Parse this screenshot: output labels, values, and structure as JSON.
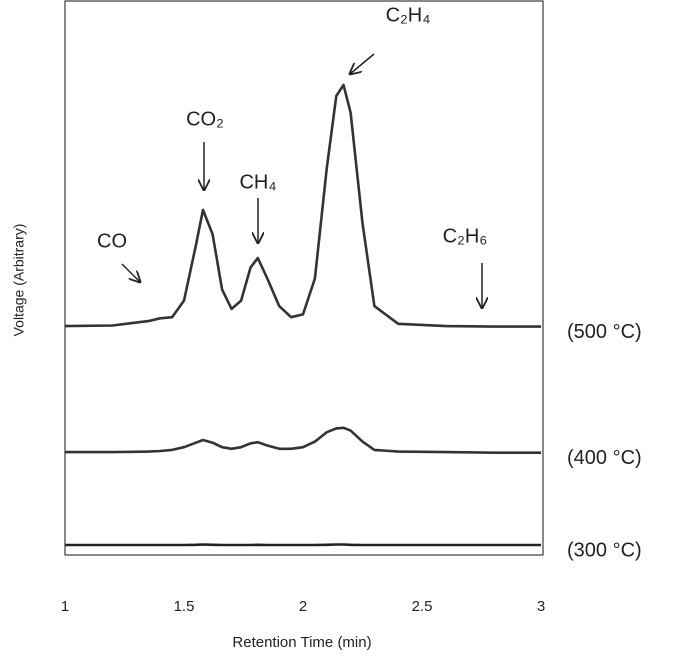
{
  "chart_data": {
    "type": "line",
    "x_label": "Retention Time (min)",
    "y_label": "Voltage (Arbitrary)",
    "x": [
      1,
      1.2,
      1.35,
      1.4,
      1.45,
      1.5,
      1.55,
      1.58,
      1.62,
      1.66,
      1.7,
      1.74,
      1.78,
      1.81,
      1.85,
      1.9,
      1.95,
      2.0,
      2.05,
      2.1,
      2.14,
      2.17,
      2.2,
      2.25,
      2.3,
      2.4,
      2.6,
      2.8,
      3
    ],
    "series": [
      {
        "name": "(500 °C)",
        "color": "#333333",
        "values": [
          41.4,
          41.5,
          42.3,
          42.8,
          43.0,
          46,
          56,
          62.4,
          58,
          48,
          44.5,
          46,
          52,
          53.7,
          50,
          45,
          43,
          43.5,
          50,
          70,
          83,
          85,
          80,
          60,
          45,
          41.8,
          41.4,
          41.3,
          41.3
        ]
      },
      {
        "name": "(400 °C)",
        "color": "#333333",
        "values": [
          18.6,
          18.6,
          18.7,
          18.8,
          19,
          19.5,
          20.3,
          20.8,
          20.3,
          19.5,
          19.2,
          19.5,
          20.2,
          20.4,
          19.8,
          19.2,
          19.2,
          19.5,
          20.5,
          22.2,
          22.9,
          23,
          22.5,
          20.5,
          19,
          18.7,
          18.6,
          18.5,
          18.5
        ]
      },
      {
        "name": "(300 °C)",
        "color": "#222222",
        "values": [
          1.8,
          1.8,
          1.8,
          1.8,
          1.8,
          1.8,
          1.85,
          1.9,
          1.85,
          1.8,
          1.8,
          1.8,
          1.8,
          1.85,
          1.8,
          1.8,
          1.8,
          1.8,
          1.8,
          1.85,
          1.9,
          1.9,
          1.85,
          1.8,
          1.8,
          1.8,
          1.8,
          1.8,
          1.8
        ]
      }
    ],
    "annotations": [
      "CO",
      "CO₂",
      "CH₄",
      "C₂H₄",
      "C₂H₆"
    ],
    "xlim": [
      1,
      3
    ],
    "xticks": [
      1,
      1.5,
      2,
      2.5,
      3
    ],
    "ylim": [
      0,
      100
    ]
  }
}
